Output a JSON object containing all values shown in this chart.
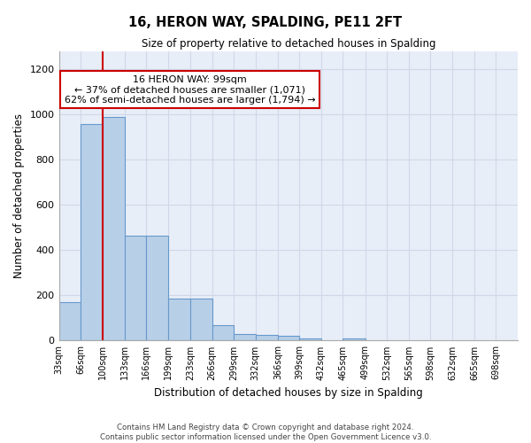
{
  "title": "16, HERON WAY, SPALDING, PE11 2FT",
  "subtitle": "Size of property relative to detached houses in Spalding",
  "xlabel": "Distribution of detached houses by size in Spalding",
  "ylabel": "Number of detached properties",
  "footer_line1": "Contains HM Land Registry data © Crown copyright and database right 2024.",
  "footer_line2": "Contains public sector information licensed under the Open Government Licence v3.0.",
  "annotation_title": "16 HERON WAY: 99sqm",
  "annotation_line1": "← 37% of detached houses are smaller (1,071)",
  "annotation_line2": "62% of semi-detached houses are larger (1,794) →",
  "bar_left_edges": [
    33,
    66,
    100,
    133,
    166,
    199,
    233,
    266,
    299,
    332,
    366,
    399,
    432,
    465,
    499,
    532,
    565,
    598,
    632,
    665
  ],
  "bar_widths": [
    33,
    34,
    33,
    33,
    33,
    34,
    33,
    33,
    33,
    34,
    33,
    33,
    33,
    34,
    33,
    33,
    33,
    34,
    33,
    33
  ],
  "bar_heights": [
    170,
    960,
    990,
    465,
    465,
    185,
    185,
    70,
    30,
    25,
    20,
    10,
    0,
    10,
    0,
    0,
    0,
    0,
    0,
    0
  ],
  "bar_color": "#b8cfe8",
  "bar_edgecolor": "#6699cc",
  "grid_color": "#d0d8e8",
  "background_color": "#e8eef8",
  "annotation_box_color": "#cc0000",
  "red_line_x": 100,
  "ylim": [
    0,
    1280
  ],
  "yticks": [
    0,
    200,
    400,
    600,
    800,
    1000,
    1200
  ],
  "x_tick_positions": [
    33,
    66,
    100,
    133,
    166,
    199,
    233,
    266,
    299,
    332,
    366,
    399,
    432,
    465,
    499,
    532,
    565,
    598,
    632,
    665,
    698
  ],
  "x_labels": [
    "33sqm",
    "66sqm",
    "100sqm",
    "133sqm",
    "166sqm",
    "199sqm",
    "233sqm",
    "266sqm",
    "299sqm",
    "332sqm",
    "366sqm",
    "399sqm",
    "432sqm",
    "465sqm",
    "499sqm",
    "532sqm",
    "565sqm",
    "598sqm",
    "632sqm",
    "665sqm",
    "698sqm"
  ],
  "xlim": [
    33,
    731
  ]
}
